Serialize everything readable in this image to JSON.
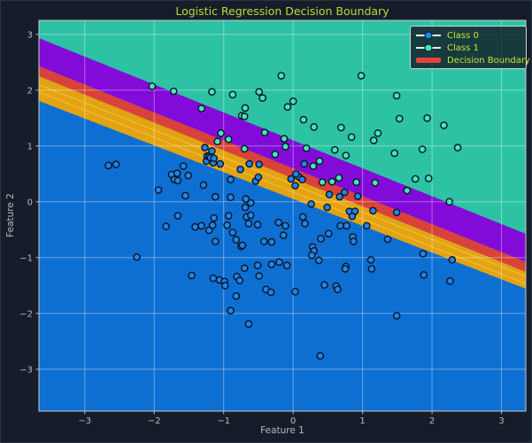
{
  "colors": {
    "bg": "#161d2a",
    "title": "#bdd936",
    "tick_label": "#b6bbc3",
    "axislabel": "#b6bbc3",
    "grid": "rgba(255,255,255,0.38)",
    "spine": "#c6cbd1",
    "legend_bg": "rgba(16,25,35,0.8)",
    "legend_border": "#ccd2d8",
    "legend_text": "#c6e432",
    "legend_line": "#e6edf0",
    "marker_edge": "#0c1220",
    "class0_region": "#0e6fd2",
    "class1_region": "#2dc2a4",
    "band_purple": "#830bd9",
    "band_orange": "#e3a313",
    "boundary_red": "#d9423a",
    "orange_stripe": "rgba(250,215,80,0.5)",
    "class0_marker": "#1e86ee",
    "class1_marker": "#45e6bd"
  },
  "legend": {
    "items": [
      {
        "label": "Class 0",
        "marker": "circle",
        "color": "#1e86ee"
      },
      {
        "label": "Class 1",
        "marker": "circle",
        "color": "#45e6bd"
      },
      {
        "label": "Decision Boundary",
        "marker": "line",
        "color": "#e1453c"
      }
    ]
  },
  "chart_data": {
    "type": "scatter",
    "title": "Logistic Regression Decision Boundary",
    "xlabel": "Feature 1",
    "ylabel": "Feature 2",
    "xlim": [
      -3.66,
      3.35
    ],
    "ylim": [
      -3.75,
      3.25
    ],
    "xticks": [
      -3,
      -2,
      -1,
      0,
      1,
      2,
      3
    ],
    "yticks": [
      -3,
      -2,
      -1,
      0,
      1,
      2,
      3
    ],
    "grid": true,
    "legend_position": "upper right",
    "regions": {
      "description": "Probability contour bands of logistic regression; straight boundary lines y = m*x + b in data coords",
      "class1_above_line": {
        "m": -0.5,
        "b": 1.1
      },
      "bands": [
        {
          "name": "purple-band",
          "upper": {
            "m": -0.5,
            "b": 1.1
          },
          "lower": {
            "m": -0.5,
            "b": 0.6
          },
          "color_key": "band_purple"
        },
        {
          "name": "decision-boundary-band",
          "upper": {
            "m": -0.5,
            "b": 0.6
          },
          "lower": {
            "m": -0.5,
            "b": 0.42
          },
          "color_key": "boundary_red"
        },
        {
          "name": "orange-band",
          "upper": {
            "m": -0.5,
            "b": 0.42
          },
          "lower": {
            "m": -0.48,
            "b": 0.05
          },
          "color_key": "band_orange"
        }
      ],
      "orange_stripes": [
        {
          "m": -0.49,
          "b": 0.305
        },
        {
          "m": -0.49,
          "b": 0.175
        }
      ]
    },
    "series": [
      {
        "name": "Class 0",
        "color_key": "class0_marker",
        "points": [
          [
            -2.66,
            0.65
          ],
          [
            -2.55,
            0.67
          ],
          [
            -1.94,
            0.21
          ],
          [
            -1.75,
            0.49
          ],
          [
            -1.71,
            0.4
          ],
          [
            -1.67,
            0.51
          ],
          [
            -1.66,
            0.38
          ],
          [
            -1.58,
            0.64
          ],
          [
            -1.55,
            0.11
          ],
          [
            -1.51,
            0.47
          ],
          [
            -1.29,
            0.3
          ],
          [
            -1.27,
            0.97
          ],
          [
            -1.25,
            0.73
          ],
          [
            -1.24,
            0.82
          ],
          [
            -1.21,
            0.81
          ],
          [
            -1.19,
            0.79
          ],
          [
            -1.17,
            0.91
          ],
          [
            -1.15,
            0.7
          ],
          [
            -1.14,
            0.78
          ],
          [
            -1.12,
            0.09
          ],
          [
            -1.05,
            0.68
          ],
          [
            -0.9,
            0.4
          ],
          [
            -0.9,
            0.08
          ],
          [
            -0.76,
            0.58
          ],
          [
            -0.68,
            0.05
          ],
          [
            -0.63,
            0.68
          ],
          [
            -0.61,
            -0.02
          ],
          [
            -0.54,
            0.37
          ],
          [
            -0.5,
            0.44
          ],
          [
            -0.49,
            0.67
          ],
          [
            -0.69,
            -0.1
          ],
          [
            0.16,
            0.68
          ],
          [
            0.08,
            0.45
          ],
          [
            0.04,
            0.5
          ],
          [
            -0.03,
            0.41
          ],
          [
            0.13,
            0.4
          ],
          [
            0.03,
            0.29
          ],
          [
            0.26,
            -0.04
          ],
          [
            0.52,
            0.13
          ],
          [
            0.67,
            0.09
          ],
          [
            0.74,
            0.17
          ],
          [
            0.93,
            0.1
          ],
          [
            1.15,
            -0.16
          ],
          [
            1.49,
            -0.19
          ],
          [
            0.49,
            -0.1
          ],
          [
            0.81,
            -0.17
          ],
          [
            0.89,
            -0.17
          ],
          [
            -2.25,
            -0.99
          ],
          [
            -1.83,
            -0.44
          ],
          [
            -1.66,
            -0.25
          ],
          [
            -1.46,
            -1.32
          ],
          [
            -1.41,
            -0.45
          ],
          [
            -1.32,
            -0.43
          ],
          [
            -1.21,
            -0.51
          ],
          [
            -1.16,
            -0.42
          ],
          [
            -1.15,
            -1.37
          ],
          [
            -1.14,
            -0.29
          ],
          [
            -1.12,
            -0.71
          ],
          [
            -1.06,
            -1.4
          ],
          [
            -0.99,
            -1.43
          ],
          [
            -0.98,
            -1.5
          ],
          [
            -0.95,
            -0.42
          ],
          [
            -0.93,
            -0.25
          ],
          [
            -0.9,
            -1.95
          ],
          [
            -0.87,
            -0.55
          ],
          [
            -0.82,
            -0.68
          ],
          [
            -0.82,
            -1.69
          ],
          [
            -0.81,
            -1.34
          ],
          [
            -0.77,
            -1.41
          ],
          [
            -0.75,
            -0.8
          ],
          [
            -0.73,
            -0.78
          ],
          [
            -0.7,
            -1.19
          ],
          [
            -0.67,
            -0.27
          ],
          [
            -0.64,
            -0.39
          ],
          [
            -0.64,
            -2.19
          ],
          [
            -0.61,
            -0.24
          ],
          [
            -0.51,
            -0.41
          ],
          [
            -0.51,
            -1.14
          ],
          [
            -0.49,
            -1.33
          ],
          [
            -0.42,
            -0.71
          ],
          [
            -0.39,
            -1.57
          ],
          [
            -0.32,
            -1.62
          ],
          [
            -0.31,
            -0.72
          ],
          [
            -0.31,
            -1.12
          ],
          [
            -0.21,
            -0.37
          ],
          [
            -0.2,
            -1.08
          ],
          [
            -0.14,
            -0.6
          ],
          [
            -0.11,
            -0.43
          ],
          [
            0.14,
            -0.27
          ],
          [
            0.17,
            -0.39
          ],
          [
            0.4,
            -0.66
          ],
          [
            0.51,
            -0.57
          ],
          [
            0.68,
            -0.43
          ],
          [
            0.77,
            -0.43
          ],
          [
            0.85,
            -0.26
          ],
          [
            0.86,
            -0.63
          ],
          [
            0.87,
            -0.71
          ],
          [
            1.06,
            -0.43
          ],
          [
            0.28,
            -0.81
          ],
          [
            0.3,
            -0.88
          ],
          [
            0.27,
            -0.96
          ],
          [
            0.37,
            -1.05
          ],
          [
            -0.09,
            -1.14
          ],
          [
            0.76,
            -1.16
          ],
          [
            0.75,
            -1.2
          ],
          [
            1.12,
            -1.04
          ],
          [
            1.13,
            -1.2
          ],
          [
            1.36,
            -0.67
          ],
          [
            1.87,
            -0.93
          ],
          [
            1.88,
            -1.31
          ],
          [
            2.29,
            -1.04
          ],
          [
            2.26,
            -1.42
          ],
          [
            0.45,
            -1.49
          ],
          [
            0.62,
            -1.51
          ],
          [
            0.64,
            -1.57
          ],
          [
            0.03,
            -1.61
          ],
          [
            1.49,
            -2.04
          ],
          [
            0.39,
            -2.76
          ]
        ]
      },
      {
        "name": "Class 1",
        "color_key": "class1_marker",
        "points": [
          [
            -2.03,
            2.07
          ],
          [
            -1.72,
            1.98
          ],
          [
            -1.17,
            1.97
          ],
          [
            -0.87,
            1.92
          ],
          [
            -1.32,
            1.67
          ],
          [
            -0.49,
            1.97
          ],
          [
            -0.44,
            1.86
          ],
          [
            -0.69,
            1.68
          ],
          [
            -0.74,
            1.54
          ],
          [
            -0.7,
            1.53
          ],
          [
            -0.17,
            2.26
          ],
          [
            -0.08,
            1.7
          ],
          [
            0.0,
            1.8
          ],
          [
            -0.41,
            1.24
          ],
          [
            -1.04,
            1.23
          ],
          [
            -1.09,
            1.08
          ],
          [
            -0.93,
            1.12
          ],
          [
            -0.13,
            1.13
          ],
          [
            -0.7,
            0.95
          ],
          [
            -0.11,
            0.99
          ],
          [
            -0.26,
            0.85
          ],
          [
            0.98,
            2.26
          ],
          [
            1.49,
            1.9
          ],
          [
            0.15,
            1.47
          ],
          [
            0.3,
            1.34
          ],
          [
            1.53,
            1.49
          ],
          [
            1.93,
            1.5
          ],
          [
            2.17,
            1.37
          ],
          [
            0.69,
            1.33
          ],
          [
            0.84,
            1.16
          ],
          [
            1.22,
            1.23
          ],
          [
            1.16,
            1.1
          ],
          [
            0.6,
            0.93
          ],
          [
            0.76,
            0.83
          ],
          [
            1.46,
            0.87
          ],
          [
            1.86,
            0.94
          ],
          [
            2.37,
            0.97
          ],
          [
            0.29,
            0.64
          ],
          [
            0.42,
            0.35
          ],
          [
            0.56,
            0.36
          ],
          [
            0.66,
            0.43
          ],
          [
            0.91,
            0.35
          ],
          [
            1.18,
            0.34
          ],
          [
            1.64,
            0.2
          ],
          [
            1.76,
            0.41
          ],
          [
            1.95,
            0.42
          ],
          [
            2.25,
            0.0
          ],
          [
            0.19,
            0.96
          ],
          [
            0.38,
            0.73
          ]
        ]
      }
    ]
  }
}
